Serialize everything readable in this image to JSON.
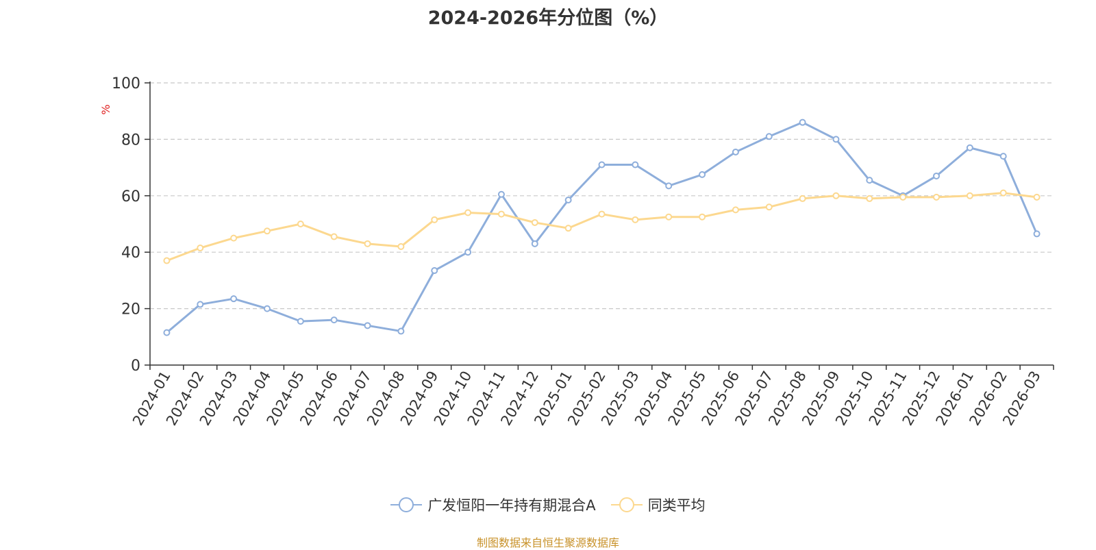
{
  "chart_data": {
    "type": "line",
    "title": "2024-2026年分位图（%）",
    "ylabel": "%",
    "xlabel": "",
    "ylim": [
      0,
      100
    ],
    "yticks": [
      0,
      20,
      40,
      60,
      80,
      100
    ],
    "grid": true,
    "legend_position": "bottom",
    "categories": [
      "2024-01",
      "2024-02",
      "2024-03",
      "2024-04",
      "2024-05",
      "2024-06",
      "2024-07",
      "2024-08",
      "2024-09",
      "2024-10",
      "2024-11",
      "2024-12",
      "2025-01",
      "2025-02",
      "2025-03",
      "2025-04",
      "2025-05",
      "2025-06",
      "2025-07",
      "2025-08",
      "2025-09",
      "2025-10",
      "2025-11",
      "2025-12",
      "2026-01",
      "2026-02",
      "2026-03"
    ],
    "series": [
      {
        "name": "广发恒阳一年持有期混合A",
        "color": "#8eaedb",
        "values": [
          11.5,
          21.5,
          23.5,
          20.0,
          15.5,
          16.0,
          14.0,
          12.0,
          33.5,
          40.0,
          60.5,
          43.0,
          58.5,
          71.0,
          71.0,
          63.5,
          67.5,
          75.5,
          81.0,
          86.0,
          80.0,
          65.5,
          60.0,
          67.0,
          77.0,
          74.0,
          46.5
        ]
      },
      {
        "name": "同类平均",
        "color": "#fcd88f",
        "values": [
          37.0,
          41.5,
          45.0,
          47.5,
          50.0,
          45.5,
          43.0,
          42.0,
          51.5,
          54.0,
          53.5,
          50.5,
          48.5,
          53.5,
          51.5,
          52.5,
          52.5,
          55.0,
          56.0,
          59.0,
          60.0,
          59.0,
          59.5,
          59.5,
          60.0,
          61.0,
          59.5
        ]
      }
    ]
  },
  "source_note": "制图数据来自恒生聚源数据库"
}
